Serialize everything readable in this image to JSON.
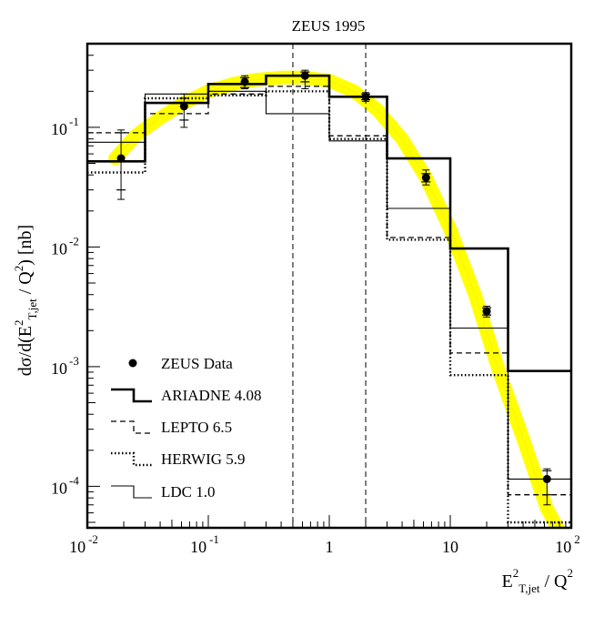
{
  "chart_data": {
    "type": "line",
    "title": "ZEUS 1995",
    "ylabel_parts": {
      "prefix": "dσ/d(E",
      "sup": "2",
      "sub": "T,jet",
      "mid": " / Q",
      "sup2": "2",
      "suffix": ") [nb]"
    },
    "xlabel_parts": {
      "base": "E",
      "sup": "2",
      "sub": "T,jet",
      "mid": " / Q",
      "sup2": "2"
    },
    "x_scale": "log",
    "y_scale": "log",
    "xlim": [
      0.01,
      100
    ],
    "ylim": [
      4.5e-05,
      0.5
    ],
    "x_ticks": [
      {
        "value": 0.01,
        "base": "10",
        "exp": "-2"
      },
      {
        "value": 0.1,
        "base": "10",
        "exp": "-1"
      },
      {
        "value": 1,
        "base": "1",
        "exp": ""
      },
      {
        "value": 10,
        "base": "10",
        "exp": ""
      },
      {
        "value": 100,
        "base": "10",
        "exp": "2"
      }
    ],
    "y_ticks": [
      {
        "value": 0.1,
        "base": "10",
        "exp": "-1"
      },
      {
        "value": 0.01,
        "base": "10",
        "exp": "-2"
      },
      {
        "value": 0.001,
        "base": "10",
        "exp": "-3"
      },
      {
        "value": 0.0001,
        "base": "10",
        "exp": "-4"
      }
    ],
    "vlines": [
      0.5,
      2
    ],
    "bin_edges": [
      0.01,
      0.03,
      0.1,
      0.3,
      1,
      3,
      10,
      30,
      100
    ],
    "data_points": [
      {
        "x": 0.019,
        "y": 0.055,
        "err_stat": [
          0.03,
          0.09
        ],
        "err_sys": [
          0.025,
          0.095
        ]
      },
      {
        "x": 0.063,
        "y": 0.15,
        "err_stat": [
          0.115,
          0.175
        ],
        "err_sys": [
          0.1,
          0.19
        ]
      },
      {
        "x": 0.2,
        "y": 0.24,
        "err_stat": [
          0.215,
          0.26
        ],
        "err_sys": [
          0.21,
          0.27
        ]
      },
      {
        "x": 0.63,
        "y": 0.27,
        "err_stat": [
          0.24,
          0.29
        ],
        "err_sys": [
          0.21,
          0.3
        ]
      },
      {
        "x": 2.0,
        "y": 0.18,
        "err_stat": [
          0.17,
          0.19
        ],
        "err_sys": [
          0.165,
          0.195
        ]
      },
      {
        "x": 6.3,
        "y": 0.038,
        "err_stat": [
          0.035,
          0.041
        ],
        "err_sys": [
          0.033,
          0.044
        ]
      },
      {
        "x": 20,
        "y": 0.0029,
        "err_stat": [
          0.0027,
          0.0031
        ],
        "err_sys": [
          0.0026,
          0.0032
        ]
      },
      {
        "x": 63,
        "y": 0.000115,
        "err_stat": [
          8.5e-05,
          0.000135
        ],
        "err_sys": [
          7e-05,
          0.00014
        ]
      }
    ],
    "band_curve": {
      "x": [
        0.017,
        0.025,
        0.04,
        0.063,
        0.1,
        0.16,
        0.25,
        0.4,
        0.63,
        1,
        1.6,
        2.5,
        4,
        6.3,
        10,
        16,
        25,
        40,
        63,
        100
      ],
      "y": [
        0.055,
        0.085,
        0.12,
        0.16,
        0.2,
        0.23,
        0.25,
        0.26,
        0.26,
        0.245,
        0.2,
        0.14,
        0.08,
        0.038,
        0.014,
        0.004,
        0.00095,
        0.00025,
        6.5e-05,
        2.8e-05
      ]
    },
    "series": [
      {
        "name": "ARIADNE 4.08",
        "style": "thick",
        "values": [
          0.052,
          0.16,
          0.23,
          0.27,
          0.18,
          0.055,
          0.0097,
          0.00092
        ]
      },
      {
        "name": "LEPTO 6.5",
        "style": "dashed",
        "values": [
          0.09,
          0.13,
          0.19,
          0.22,
          0.085,
          0.012,
          0.0013,
          8.5e-05
        ]
      },
      {
        "name": "HERWIG 5.9",
        "style": "dotted",
        "values": [
          0.042,
          0.175,
          0.185,
          0.2,
          0.08,
          0.0115,
          0.00085,
          5e-05
        ]
      },
      {
        "name": "LDC 1.0",
        "style": "thin",
        "values": [
          0.075,
          0.19,
          0.2,
          0.13,
          0.077,
          0.021,
          0.0021,
          0.000115
        ]
      }
    ],
    "legend": {
      "position": "bottom-left",
      "data_label": "ZEUS Data"
    },
    "colors": {
      "band": "#ffff00",
      "frame": "#000000"
    }
  }
}
